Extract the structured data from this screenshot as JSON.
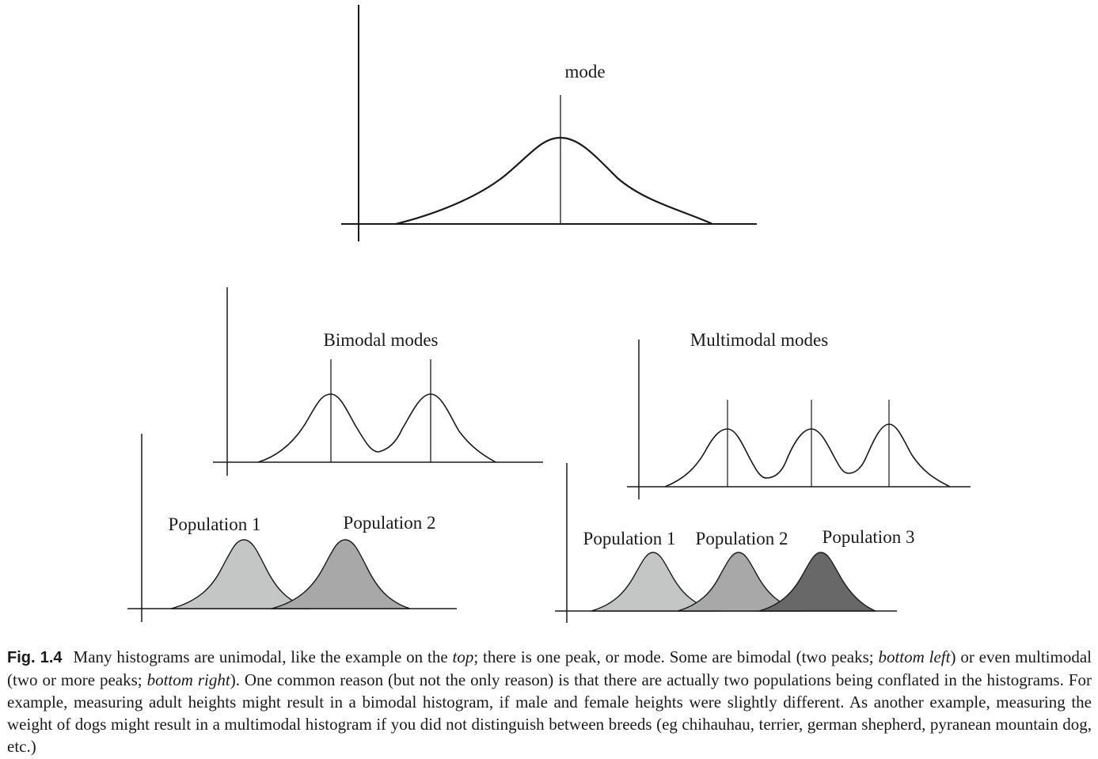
{
  "panels": {
    "top": {
      "label": "mode"
    },
    "bimodal": {
      "label": "Bimodal modes",
      "populations": [
        "Population 1",
        "Population 2"
      ]
    },
    "multimodal": {
      "label": "Multimodal modes",
      "populations": [
        "Population 1",
        "Population 2",
        "Population 3"
      ]
    }
  },
  "colors": {
    "line": "#1a1a1a",
    "population_1": "#c4c6c5",
    "population_2": "#a8a8a8",
    "population_3": "#686868"
  },
  "caption": {
    "fig_label": "Fig. 1.4",
    "parts": [
      {
        "text": "Many histograms are unimodal, like the example on the ",
        "italic": false
      },
      {
        "text": "top",
        "italic": true
      },
      {
        "text": "; there is one peak, or mode. Some are bimodal (two peaks; ",
        "italic": false
      },
      {
        "text": "bottom left",
        "italic": true
      },
      {
        "text": ") or even multimodal (two or more peaks; ",
        "italic": false
      },
      {
        "text": "bottom right",
        "italic": true
      },
      {
        "text": "). One common reason (but not the only reason) is that there are actually two populations being conflated in the histograms. For example, measuring adult heights might result in a bimodal histogram, if male and female heights were slightly different. As another example, measuring the weight of dogs might result in a multimodal histogram if you did not distinguish between breeds (eg chihauhau, terrier, german shepherd, pyranean mountain dog, etc.)",
        "italic": false
      }
    ]
  }
}
